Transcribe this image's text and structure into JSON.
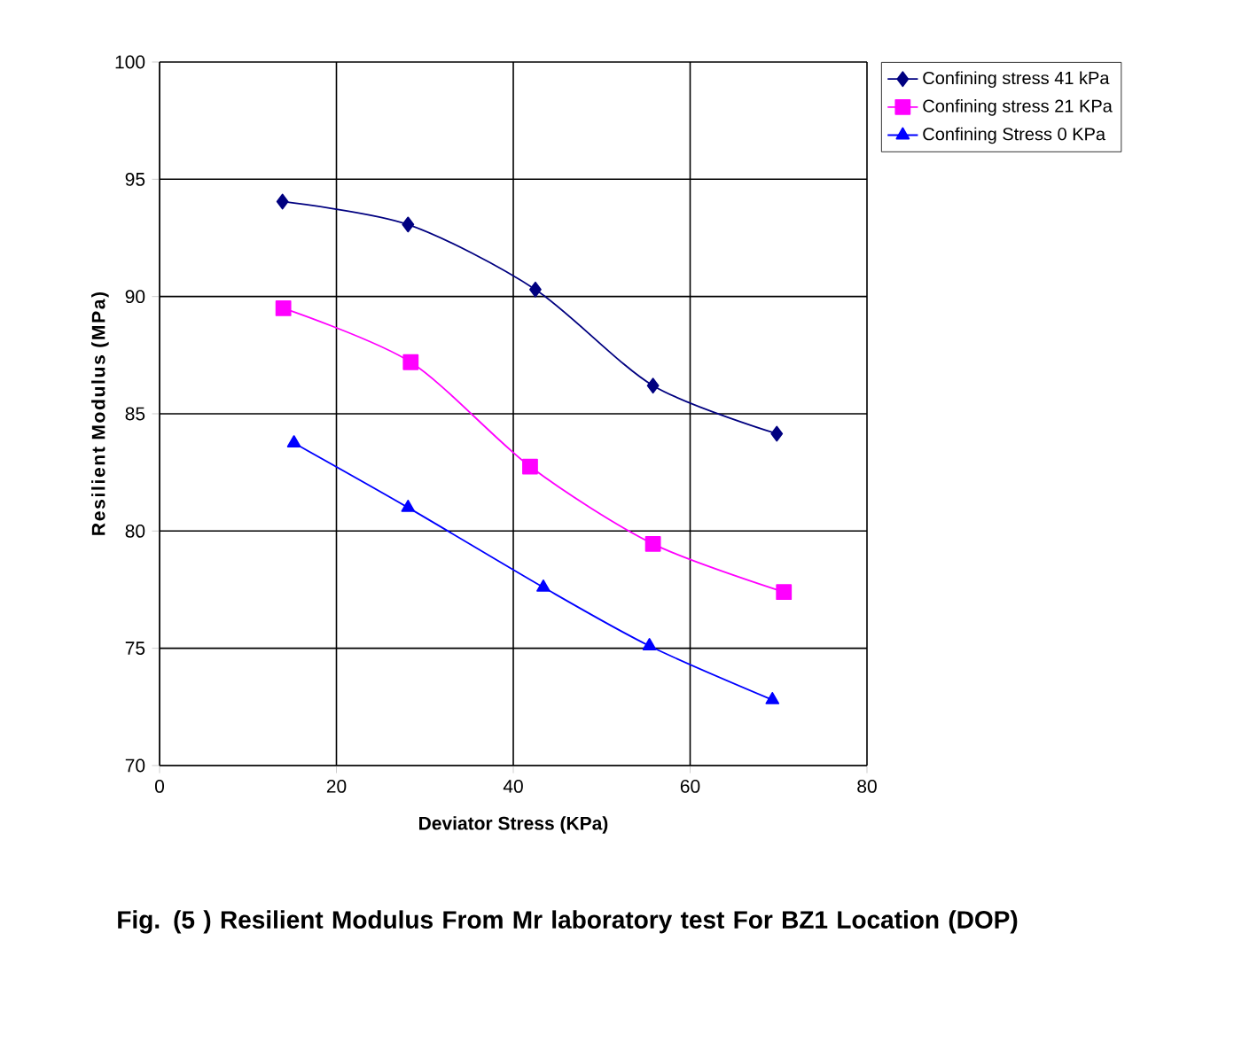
{
  "chart_data": {
    "type": "line",
    "title": "Fig. (5 )  Resilient Modulus From Mr laboratory test For  BZ1 Location (DOP)",
    "xlabel": "Deviator Stress (KPa)",
    "ylabel": "Resilient Modulus (MPa)",
    "xlim": [
      0,
      80
    ],
    "xticks": [
      0,
      20,
      40,
      60,
      80
    ],
    "ylim": [
      70,
      100
    ],
    "yticks": [
      70,
      75,
      80,
      85,
      90,
      95,
      100
    ],
    "grid": true,
    "legend": "top right",
    "series": [
      {
        "name": "Confining stress 41 kPa",
        "color": "#000080",
        "marker": "diamond",
        "x": [
          13.9,
          28.1,
          42.5,
          55.8,
          69.8
        ],
        "values": [
          94.05,
          93.07,
          90.3,
          86.2,
          84.15
        ]
      },
      {
        "name": "Confining stress 21 KPa",
        "color": "#ff00ff",
        "marker": "square",
        "x": [
          14.0,
          28.4,
          41.9,
          55.8,
          70.6
        ],
        "values": [
          89.5,
          87.2,
          82.75,
          79.45,
          77.4
        ]
      },
      {
        "name": "Confining Stress 0 KPa",
        "color": "#0000ff",
        "marker": "triangle",
        "x": [
          15.2,
          28.1,
          43.4,
          55.4,
          69.3
        ],
        "values": [
          83.75,
          81.0,
          77.6,
          75.1,
          72.8
        ]
      }
    ]
  }
}
